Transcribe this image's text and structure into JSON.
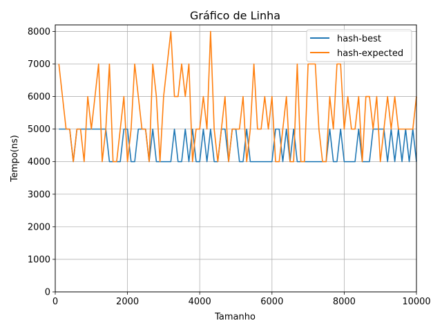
{
  "chart_data": {
    "type": "line",
    "title": "Gráfico de Linha",
    "xlabel": "Tamanho",
    "ylabel": "Tempo(ns)",
    "xlim": [
      0,
      10000
    ],
    "ylim": [
      0,
      8200
    ],
    "xticks": [
      0,
      2000,
      4000,
      6000,
      8000,
      10000
    ],
    "yticks": [
      0,
      1000,
      2000,
      3000,
      4000,
      5000,
      6000,
      7000,
      8000
    ],
    "grid": true,
    "legend_position": "top-right",
    "x": [
      100,
      200,
      300,
      400,
      500,
      600,
      700,
      800,
      900,
      1000,
      1100,
      1200,
      1300,
      1400,
      1500,
      1600,
      1700,
      1800,
      1900,
      2000,
      2100,
      2200,
      2300,
      2400,
      2500,
      2600,
      2700,
      2800,
      2900,
      3000,
      3100,
      3200,
      3300,
      3400,
      3500,
      3600,
      3700,
      3800,
      3900,
      4000,
      4100,
      4200,
      4300,
      4400,
      4500,
      4600,
      4700,
      4800,
      4900,
      5000,
      5100,
      5200,
      5300,
      5400,
      5500,
      5600,
      5700,
      5800,
      5900,
      6000,
      6100,
      6200,
      6300,
      6400,
      6500,
      6600,
      6700,
      6800,
      6900,
      7000,
      7100,
      7200,
      7300,
      7400,
      7500,
      7600,
      7700,
      7800,
      7900,
      8000,
      8100,
      8200,
      8300,
      8400,
      8500,
      8600,
      8700,
      8800,
      8900,
      9000,
      9100,
      9200,
      9300,
      9400,
      9500,
      9600,
      9700,
      9800,
      9900,
      10000
    ],
    "series": [
      {
        "name": "hash-best",
        "color": "#1f77b4",
        "values": [
          5000,
          5000,
          5000,
          5000,
          4000,
          5000,
          5000,
          5000,
          5000,
          5000,
          5000,
          5000,
          5000,
          5000,
          4000,
          4000,
          4000,
          4000,
          5000,
          5000,
          4000,
          4000,
          5000,
          5000,
          5000,
          4000,
          5000,
          4000,
          4000,
          4000,
          4000,
          4000,
          5000,
          4000,
          4000,
          5000,
          4000,
          5000,
          4000,
          4000,
          5000,
          4000,
          5000,
          4000,
          4000,
          5000,
          5000,
          4000,
          5000,
          5000,
          4000,
          4000,
          5000,
          4000,
          4000,
          4000,
          4000,
          4000,
          4000,
          4000,
          5000,
          5000,
          4000,
          5000,
          4000,
          5000,
          4000,
          4000,
          4000,
          4000,
          4000,
          4000,
          4000,
          4000,
          4000,
          5000,
          4000,
          4000,
          5000,
          4000,
          4000,
          4000,
          4000,
          5000,
          4000,
          4000,
          4000,
          5000,
          5000,
          5000,
          5000,
          4000,
          5000,
          4000,
          5000,
          4000,
          5000,
          4000,
          5000,
          4000
        ]
      },
      {
        "name": "hash-expected",
        "color": "#ff7f0e",
        "values": [
          7000,
          6000,
          5000,
          5000,
          4000,
          5000,
          5000,
          4000,
          6000,
          5000,
          6000,
          7000,
          4000,
          5000,
          7000,
          4000,
          4000,
          5000,
          6000,
          4000,
          5000,
          7000,
          6000,
          5000,
          5000,
          4000,
          7000,
          6000,
          4000,
          6000,
          7000,
          8000,
          6000,
          6000,
          7000,
          6000,
          7000,
          4000,
          5000,
          5000,
          6000,
          5000,
          8000,
          5000,
          4000,
          5000,
          6000,
          4000,
          5000,
          5000,
          5000,
          6000,
          4000,
          5000,
          7000,
          5000,
          5000,
          6000,
          5000,
          6000,
          4000,
          4000,
          5000,
          6000,
          4000,
          4000,
          7000,
          4000,
          4000,
          7000,
          7000,
          7000,
          5000,
          4000,
          4000,
          6000,
          5000,
          7000,
          7000,
          5000,
          6000,
          5000,
          5000,
          6000,
          4000,
          6000,
          6000,
          5000,
          6000,
          4000,
          5000,
          6000,
          5000,
          6000,
          5000,
          5000,
          5000,
          5000,
          5000,
          6000
        ]
      }
    ]
  }
}
